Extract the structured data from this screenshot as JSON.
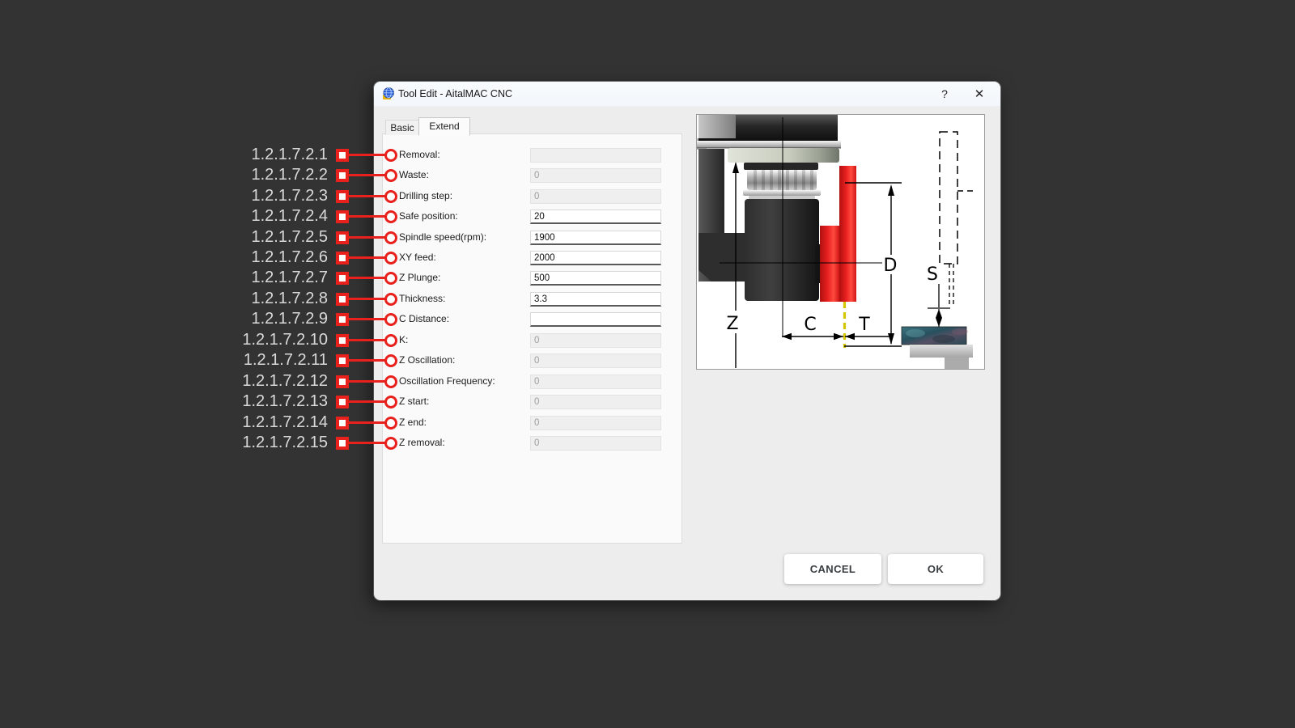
{
  "window": {
    "title": "Tool Edit - AitalMAC CNC",
    "help_label": "?",
    "close_label": "✕"
  },
  "tabs": [
    {
      "label": "Basic",
      "active": false
    },
    {
      "label": "Extend",
      "active": true
    }
  ],
  "fields": [
    {
      "ref": "1.2.1.7.2.1",
      "label": "Removal:",
      "value": "",
      "enabled": false
    },
    {
      "ref": "1.2.1.7.2.2",
      "label": "Waste:",
      "value": "0",
      "enabled": false
    },
    {
      "ref": "1.2.1.7.2.3",
      "label": "Drilling step:",
      "value": "0",
      "enabled": false
    },
    {
      "ref": "1.2.1.7.2.4",
      "label": "Safe position:",
      "value": "20",
      "enabled": true
    },
    {
      "ref": "1.2.1.7.2.5",
      "label": "Spindle speed(rpm):",
      "value": "1900",
      "enabled": true
    },
    {
      "ref": "1.2.1.7.2.6",
      "label": "XY feed:",
      "value": "2000",
      "enabled": true
    },
    {
      "ref": "1.2.1.7.2.7",
      "label": "Z Plunge:",
      "value": "500",
      "enabled": true
    },
    {
      "ref": "1.2.1.7.2.8",
      "label": "Thickness:",
      "value": "3.3",
      "enabled": true
    },
    {
      "ref": "1.2.1.7.2.9",
      "label": "C Distance:",
      "value": "",
      "enabled": true
    },
    {
      "ref": "1.2.1.7.2.10",
      "label": "K:",
      "value": "0",
      "enabled": false
    },
    {
      "ref": "1.2.1.7.2.11",
      "label": "Z Oscillation:",
      "value": "0",
      "enabled": false
    },
    {
      "ref": "1.2.1.7.2.12",
      "label": "Oscillation Frequency:",
      "value": "0",
      "enabled": false
    },
    {
      "ref": "1.2.1.7.2.13",
      "label": "Z start:",
      "value": "0",
      "enabled": false
    },
    {
      "ref": "1.2.1.7.2.14",
      "label": "Z end:",
      "value": "0",
      "enabled": false
    },
    {
      "ref": "1.2.1.7.2.15",
      "label": "Z removal:",
      "value": "0",
      "enabled": false
    }
  ],
  "buttons": {
    "cancel": "CANCEL",
    "ok": "OK"
  },
  "diagram": {
    "dim_z": "Z",
    "dim_c": "C",
    "dim_t": "T",
    "dim_d": "D",
    "dim_s": "S"
  },
  "colors": {
    "annotation_red": "#e8211d",
    "annotation_text": "#d9d9d9",
    "blade_red": "#e82020",
    "guide_yellow": "#d3c500",
    "background": "#333333"
  }
}
